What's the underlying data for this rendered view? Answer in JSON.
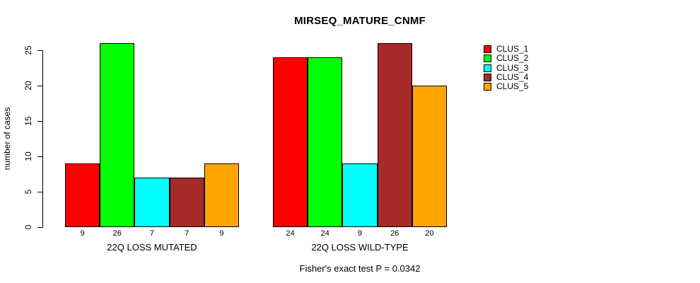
{
  "chart_data": {
    "type": "bar",
    "title": "MIRSEQ_MATURE_CNMF",
    "subtitle": "Fisher's exact test P = 0.0342",
    "ylabel": "number of cases",
    "xlabel": "",
    "y_ticks": [
      0,
      5,
      10,
      15,
      20,
      25
    ],
    "ylim": [
      0,
      26
    ],
    "grid": false,
    "legend_position": "top-right",
    "series": [
      {
        "name": "CLUS_1",
        "color": "#FF0000"
      },
      {
        "name": "CLUS_2",
        "color": "#00FF00"
      },
      {
        "name": "CLUS_3",
        "color": "#00FFFF"
      },
      {
        "name": "CLUS_4",
        "color": "#A52A2A"
      },
      {
        "name": "CLUS_5",
        "color": "#FFA500"
      }
    ],
    "groups": [
      {
        "label": "22Q LOSS MUTATED",
        "values": [
          9,
          26,
          7,
          7,
          9
        ]
      },
      {
        "label": "22Q LOSS WILD-TYPE",
        "values": [
          24,
          24,
          9,
          26,
          20
        ]
      }
    ]
  }
}
